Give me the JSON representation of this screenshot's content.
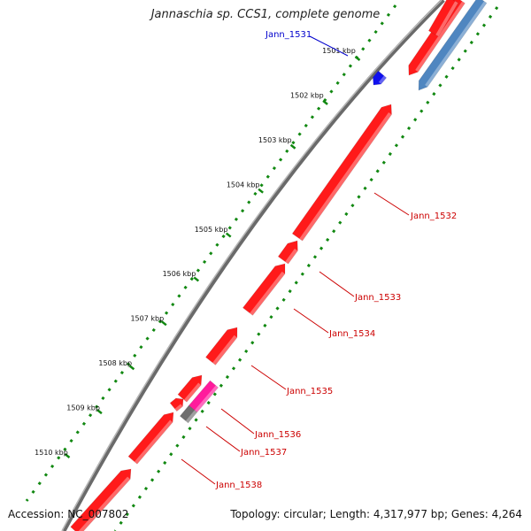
{
  "title": "Jannaschia sp. CCS1, complete genome",
  "footer": {
    "accession": "Accession: NC_007802",
    "summary": "Topology: circular; Length: 4,317,977 bp; Genes: 4,264"
  },
  "ruler_ticks": [
    {
      "label": "1501 kbp",
      "kbp": 1501
    },
    {
      "label": "1502 kbp",
      "kbp": 1502
    },
    {
      "label": "1503 kbp",
      "kbp": 1503
    },
    {
      "label": "1504 kbp",
      "kbp": 1504
    },
    {
      "label": "1505 kbp",
      "kbp": 1505
    },
    {
      "label": "1506 kbp",
      "kbp": 1506
    },
    {
      "label": "1507 kbp",
      "kbp": 1507
    },
    {
      "label": "1508 kbp",
      "kbp": 1508
    },
    {
      "label": "1509 kbp",
      "kbp": 1509
    },
    {
      "label": "1510 kbp",
      "kbp": 1510
    }
  ],
  "genes": [
    {
      "id": "Jann_1531",
      "label": "Jann_1531",
      "strand": "+",
      "color": "#1010ee",
      "labeled": true
    },
    {
      "id": "Jann_1532",
      "label": "Jann_1532",
      "strand": "-",
      "color": "#ff1a1a",
      "labeled": true
    },
    {
      "id": "Jann_1533",
      "label": "Jann_1533",
      "strand": "-",
      "color": "#ff1a1a",
      "labeled": true
    },
    {
      "id": "Jann_1534",
      "label": "Jann_1534",
      "strand": "-",
      "color": "#ff1a1a",
      "labeled": true
    },
    {
      "id": "Jann_1535",
      "label": "Jann_1535",
      "strand": "-",
      "color": "#ff1a1a",
      "labeled": true
    },
    {
      "id": "Jann_1536",
      "label": "Jann_1536",
      "strand": "-",
      "color": "#ff1a1a",
      "labeled": true
    },
    {
      "id": "Jann_1537",
      "label": "Jann_1537",
      "strand": "+",
      "color": "#ff1a9c",
      "labeled": true
    },
    {
      "id": "Jann_1538",
      "label": "Jann_1538",
      "strand": "-",
      "color": "#ff1a1a",
      "labeled": true
    }
  ],
  "colors": {
    "cds": "#ff1a1a",
    "cds_highlight": "#ff1a9c",
    "rna": "#1010ee",
    "other_feature": "#4f86c0",
    "pseudo": "#6e6e6e",
    "backbone": "#8a8a8a",
    "gc_skew": "#118811",
    "label_red": "#cc0000",
    "label_blue": "#0000cc"
  }
}
